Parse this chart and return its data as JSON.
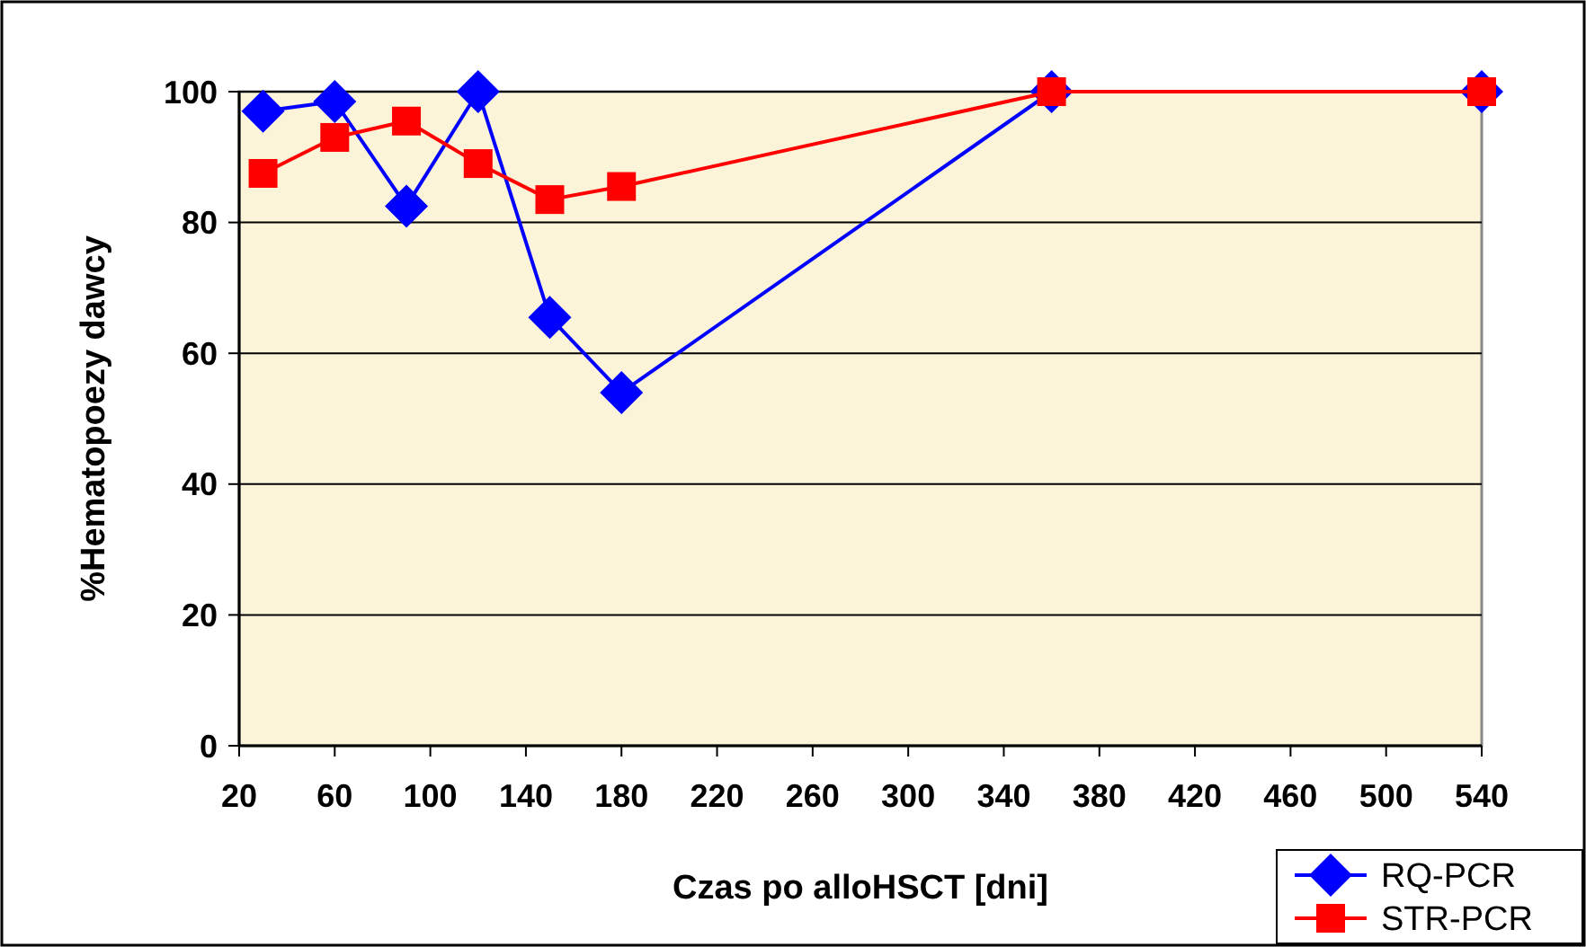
{
  "chart_data": {
    "type": "line",
    "xlabel": "Czas po alloHSCT [dni]",
    "ylabel": "%Hematopoezy dawcy",
    "x": [
      30,
      60,
      90,
      120,
      150,
      180,
      360,
      540
    ],
    "series": [
      {
        "name": "RQ-PCR",
        "color": "#0000ff",
        "marker": "diamond",
        "values": [
          97,
          98.5,
          82.5,
          100,
          65.5,
          54,
          100,
          100
        ]
      },
      {
        "name": "STR-PCR",
        "color": "#ff0000",
        "marker": "square",
        "values": [
          87.5,
          93,
          95.5,
          89,
          83.5,
          85.5,
          100,
          100
        ]
      }
    ],
    "xlim": [
      20,
      540
    ],
    "xticks": [
      20,
      60,
      100,
      140,
      180,
      220,
      260,
      300,
      340,
      380,
      420,
      460,
      500,
      540
    ],
    "ylim": [
      0,
      100
    ],
    "yticks": [
      0,
      20,
      40,
      60,
      80,
      100
    ],
    "grid": "y",
    "legend": "bottom right"
  }
}
